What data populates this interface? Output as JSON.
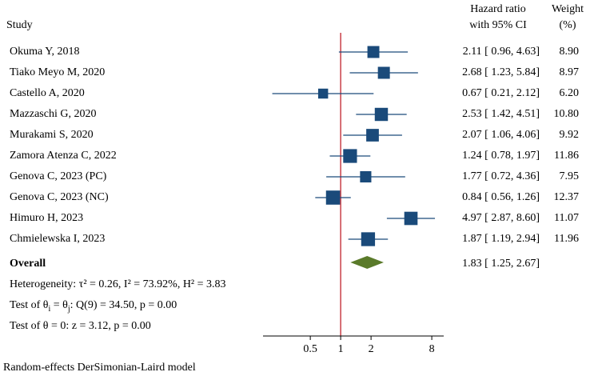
{
  "chart_data": {
    "type": "forest",
    "x_scale": "log",
    "x_ticks": [
      0.5,
      1,
      2,
      8
    ],
    "x_tick_labels": [
      "0.5",
      "1",
      "2",
      "8"
    ],
    "x_range": [
      0.17,
      10.5
    ],
    "reference_line": 1,
    "headers": {
      "study": "Study",
      "effect_line1": "Hazard ratio",
      "effect_line2": "with 95% CI",
      "weight_line1": "Weight",
      "weight_line2": "(%)"
    },
    "studies": [
      {
        "name": "Okuma Y, 2018",
        "hr": 2.11,
        "lo": 0.96,
        "hi": 4.63,
        "ci_text": "2.11 [  0.96, 4.63]",
        "weight": 8.9,
        "weight_text": "8.90"
      },
      {
        "name": "Tiako Meyo M, 2020",
        "hr": 2.68,
        "lo": 1.23,
        "hi": 5.84,
        "ci_text": "2.68 [  1.23, 5.84]",
        "weight": 8.97,
        "weight_text": "8.97"
      },
      {
        "name": "Castello A, 2020",
        "hr": 0.67,
        "lo": 0.21,
        "hi": 2.12,
        "ci_text": "0.67 [  0.21, 2.12]",
        "weight": 6.2,
        "weight_text": "6.20"
      },
      {
        "name": "Mazzaschi G, 2020",
        "hr": 2.53,
        "lo": 1.42,
        "hi": 4.51,
        "ci_text": "2.53 [  1.42, 4.51]",
        "weight": 10.8,
        "weight_text": "10.80"
      },
      {
        "name": "Murakami S, 2020",
        "hr": 2.07,
        "lo": 1.06,
        "hi": 4.06,
        "ci_text": "2.07 [  1.06, 4.06]",
        "weight": 9.92,
        "weight_text": "9.92"
      },
      {
        "name": "Zamora Atenza C, 2022",
        "hr": 1.24,
        "lo": 0.78,
        "hi": 1.97,
        "ci_text": "1.24 [  0.78, 1.97]",
        "weight": 11.86,
        "weight_text": "11.86"
      },
      {
        "name": "Genova C, 2023 (PC)",
        "hr": 1.77,
        "lo": 0.72,
        "hi": 4.36,
        "ci_text": "1.77 [  0.72, 4.36]",
        "weight": 7.95,
        "weight_text": "7.95"
      },
      {
        "name": "Genova C, 2023 (NC)",
        "hr": 0.84,
        "lo": 0.56,
        "hi": 1.26,
        "ci_text": "0.84 [  0.56, 1.26]",
        "weight": 12.37,
        "weight_text": "12.37"
      },
      {
        "name": "Himuro H, 2023",
        "hr": 4.97,
        "lo": 2.87,
        "hi": 8.6,
        "ci_text": "4.97 [  2.87, 8.60]",
        "weight": 11.07,
        "weight_text": "11.07"
      },
      {
        "name": "Chmielewska I, 2023",
        "hr": 1.87,
        "lo": 1.19,
        "hi": 2.94,
        "ci_text": "1.87 [  1.19, 2.94]",
        "weight": 11.96,
        "weight_text": "11.96"
      }
    ],
    "overall": {
      "label": "Overall",
      "hr": 1.83,
      "lo": 1.25,
      "hi": 2.67,
      "ci_text": "1.83 [  1.25, 2.67]"
    },
    "heterogeneity": "Heterogeneity: τ² = 0.26, I² = 73.92%, H² = 3.83",
    "test_theta_prefix": "Test of θ",
    "test_theta_middle": " = θ",
    "test_theta_suffix": ": Q(9) = 34.50, p = 0.00",
    "test_theta_sub1": "i",
    "test_theta_sub2": "j",
    "test_zero": "Test of θ = 0: z = 3.12, p = 0.00",
    "model_note": "Random-effects DerSimonian-Laird model",
    "colors": {
      "marker": "#1a4a7a",
      "ci_line": "#1a4a7a",
      "diamond": "#5a7a2a",
      "reference": "#c0202a",
      "axis": "#000000"
    }
  }
}
